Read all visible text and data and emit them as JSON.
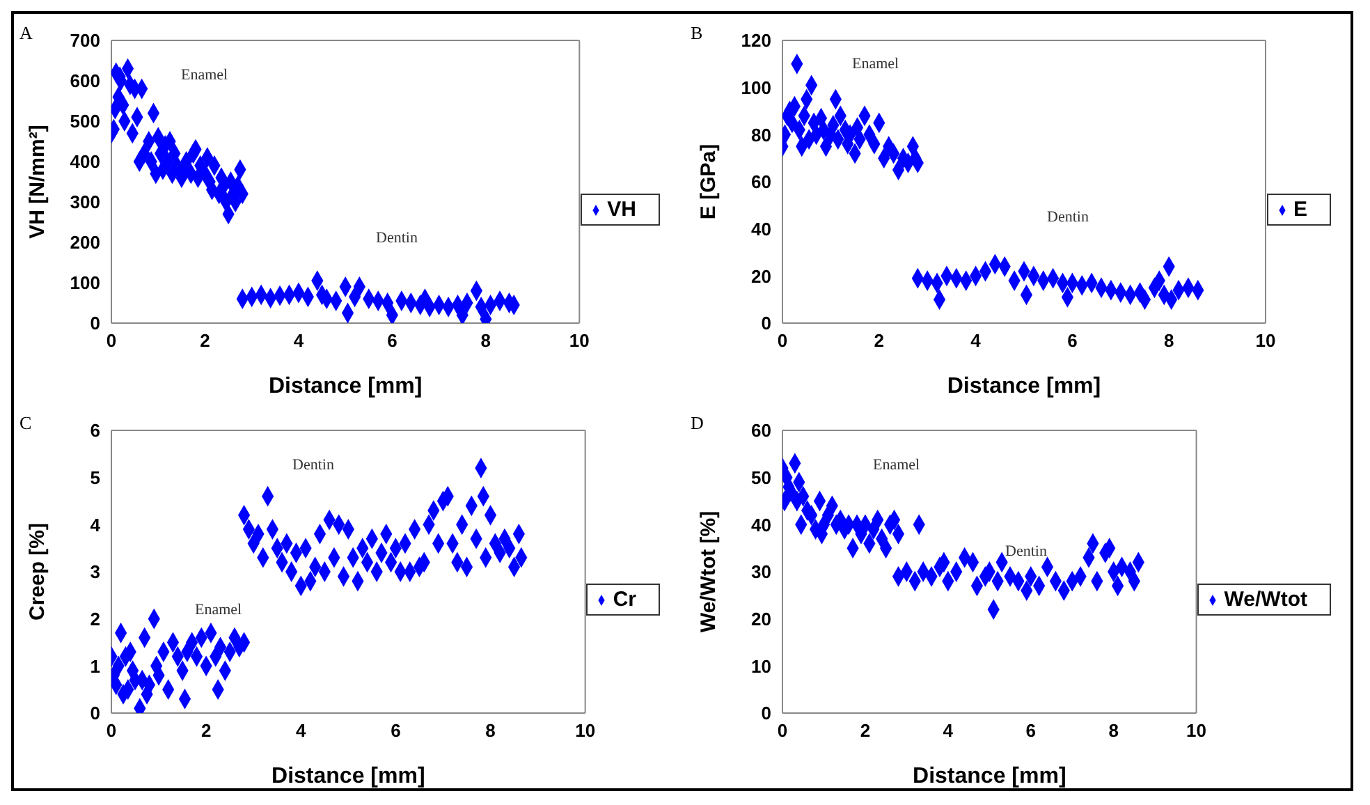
{
  "chart_data": [
    {
      "type": "scatter",
      "title": "A",
      "xlabel": "Distance [mm]",
      "ylabel": "VH [N/mm²]",
      "xlim": [
        0,
        10
      ],
      "xticks": [
        0,
        2,
        4,
        6,
        8,
        10
      ],
      "ylim": [
        0,
        700
      ],
      "yticks": [
        0,
        100,
        200,
        300,
        400,
        500,
        600,
        700
      ],
      "grid": false,
      "legend": "right",
      "marker": "diamond",
      "annotations": [
        "Enamel",
        "Dentin"
      ],
      "series": [
        {
          "name": "VH",
          "color": "#0000ff",
          "x": [
            0,
            0.05,
            0.08,
            0.1,
            0.15,
            0.18,
            0.2,
            0.25,
            0.28,
            0.35,
            0.4,
            0.45,
            0.5,
            0.55,
            0.6,
            0.65,
            0.7,
            0.8,
            0.85,
            0.9,
            0.95,
            1.0,
            1.05,
            1.1,
            1.15,
            1.2,
            1.25,
            1.3,
            1.35,
            1.4,
            1.5,
            1.55,
            1.6,
            1.7,
            1.75,
            1.8,
            1.85,
            1.9,
            2.0,
            2.05,
            2.1,
            2.15,
            2.2,
            2.3,
            2.35,
            2.4,
            2.45,
            2.5,
            2.55,
            2.6,
            2.65,
            2.7,
            2.75,
            2.8,
            2.8,
            3.0,
            3.2,
            3.4,
            3.6,
            3.8,
            4.0,
            4.2,
            4.4,
            4.5,
            4.6,
            4.8,
            5.0,
            5.05,
            5.2,
            5.3,
            5.5,
            5.7,
            5.9,
            6.0,
            6.2,
            6.4,
            6.6,
            6.7,
            6.8,
            7.0,
            7.2,
            7.4,
            7.5,
            7.6,
            7.8,
            7.9,
            8.0,
            8.1,
            8.3,
            8.5,
            8.6
          ],
          "values": [
            470,
            480,
            530,
            620,
            560,
            610,
            600,
            540,
            500,
            630,
            590,
            470,
            580,
            510,
            400,
            580,
            420,
            450,
            400,
            520,
            370,
            460,
            420,
            380,
            440,
            400,
            450,
            370,
            420,
            390,
            360,
            380,
            400,
            370,
            420,
            430,
            360,
            390,
            370,
            410,
            350,
            330,
            390,
            320,
            360,
            340,
            300,
            270,
            350,
            320,
            300,
            340,
            380,
            320,
            60,
            65,
            70,
            62,
            68,
            70,
            75,
            65,
            105,
            70,
            60,
            55,
            90,
            25,
            65,
            90,
            60,
            55,
            50,
            20,
            55,
            50,
            45,
            60,
            40,
            45,
            40,
            45,
            20,
            50,
            80,
            40,
            10,
            45,
            55,
            50,
            45
          ]
        }
      ]
    },
    {
      "type": "scatter",
      "title": "B",
      "xlabel": "Distance [mm]",
      "ylabel": "E [GPa]",
      "xlim": [
        0,
        10
      ],
      "xticks": [
        0,
        2,
        4,
        6,
        8,
        10
      ],
      "ylim": [
        0,
        120
      ],
      "yticks": [
        0,
        20,
        40,
        60,
        80,
        100,
        120
      ],
      "grid": false,
      "legend": "right",
      "marker": "diamond",
      "annotations": [
        "Enamel",
        "Dentin"
      ],
      "series": [
        {
          "name": "E",
          "color": "#0000ff",
          "x": [
            0,
            0.05,
            0.1,
            0.15,
            0.2,
            0.25,
            0.3,
            0.35,
            0.4,
            0.45,
            0.5,
            0.55,
            0.6,
            0.65,
            0.7,
            0.8,
            0.85,
            0.9,
            1.0,
            1.05,
            1.1,
            1.15,
            1.2,
            1.3,
            1.35,
            1.4,
            1.5,
            1.55,
            1.6,
            1.7,
            1.8,
            1.9,
            2.0,
            2.1,
            2.2,
            2.3,
            2.4,
            2.5,
            2.6,
            2.7,
            2.75,
            2.8,
            2.8,
            3.0,
            3.2,
            3.25,
            3.4,
            3.6,
            3.8,
            4.0,
            4.2,
            4.4,
            4.6,
            4.8,
            5.0,
            5.05,
            5.2,
            5.4,
            5.6,
            5.8,
            5.9,
            6.0,
            6.2,
            6.4,
            6.6,
            6.8,
            7.0,
            7.2,
            7.4,
            7.5,
            7.7,
            7.8,
            7.9,
            8.0,
            8.05,
            8.2,
            8.4,
            8.6
          ],
          "values": [
            75,
            80,
            88,
            90,
            85,
            92,
            110,
            82,
            75,
            88,
            95,
            78,
            101,
            85,
            80,
            87,
            82,
            75,
            80,
            84,
            95,
            78,
            88,
            82,
            76,
            80,
            72,
            83,
            78,
            88,
            80,
            76,
            85,
            70,
            75,
            72,
            65,
            70,
            68,
            75,
            70,
            68,
            19,
            18,
            17,
            10,
            20,
            19,
            18,
            20,
            22,
            25,
            24,
            18,
            22,
            12,
            20,
            18,
            19,
            17,
            11,
            17,
            16,
            17,
            15,
            14,
            13,
            12,
            13,
            10,
            15,
            18,
            12,
            24,
            10,
            14,
            15,
            14
          ]
        }
      ]
    },
    {
      "type": "scatter",
      "title": "C",
      "xlabel": "Distance [mm]",
      "ylabel": "Creep [%]",
      "xlim": [
        0,
        10
      ],
      "xticks": [
        0,
        2,
        4,
        6,
        8,
        10
      ],
      "ylim": [
        0,
        6
      ],
      "yticks": [
        0,
        1,
        2,
        3,
        4,
        5,
        6
      ],
      "grid": false,
      "legend": "right",
      "marker": "diamond",
      "annotations": [
        "Dentin",
        "Enamel"
      ],
      "series": [
        {
          "name": "Cr",
          "color": "#0000ff",
          "x": [
            0,
            0.05,
            0.1,
            0.15,
            0.2,
            0.25,
            0.3,
            0.35,
            0.4,
            0.45,
            0.5,
            0.6,
            0.65,
            0.7,
            0.75,
            0.8,
            0.9,
            0.95,
            1.0,
            1.1,
            1.2,
            1.3,
            1.4,
            1.5,
            1.55,
            1.6,
            1.7,
            1.8,
            1.9,
            2.0,
            2.1,
            2.2,
            2.25,
            2.3,
            2.4,
            2.5,
            2.6,
            2.7,
            2.8,
            2.8,
            2.9,
            3.0,
            3.1,
            3.2,
            3.3,
            3.4,
            3.5,
            3.6,
            3.7,
            3.8,
            3.9,
            4.0,
            4.1,
            4.2,
            4.3,
            4.4,
            4.5,
            4.6,
            4.7,
            4.8,
            4.9,
            5.0,
            5.1,
            5.2,
            5.3,
            5.4,
            5.5,
            5.6,
            5.7,
            5.8,
            5.9,
            6.0,
            6.1,
            6.2,
            6.3,
            6.4,
            6.5,
            6.6,
            6.7,
            6.8,
            6.9,
            7.0,
            7.1,
            7.2,
            7.3,
            7.4,
            7.5,
            7.6,
            7.7,
            7.8,
            7.85,
            7.9,
            8.0,
            8.1,
            8.2,
            8.3,
            8.4,
            8.5,
            8.6,
            8.65
          ],
          "values": [
            1.2,
            0.8,
            0.6,
            1.0,
            1.7,
            0.4,
            1.2,
            0.5,
            1.3,
            0.9,
            0.7,
            0.1,
            0.7,
            1.6,
            0.4,
            0.6,
            2.0,
            1.0,
            0.8,
            1.3,
            0.5,
            1.5,
            1.2,
            0.9,
            0.3,
            1.3,
            1.5,
            1.2,
            1.6,
            1.0,
            1.7,
            1.2,
            0.5,
            1.4,
            0.9,
            1.3,
            1.6,
            1.4,
            1.5,
            4.2,
            3.9,
            3.6,
            3.8,
            3.3,
            4.6,
            3.9,
            3.5,
            3.2,
            3.6,
            3.0,
            3.4,
            2.7,
            3.5,
            2.8,
            3.1,
            3.8,
            3.0,
            4.1,
            3.3,
            4.0,
            2.9,
            3.9,
            3.3,
            2.8,
            3.5,
            3.2,
            3.7,
            3.0,
            3.4,
            3.8,
            3.2,
            3.5,
            3.0,
            3.6,
            3.0,
            3.9,
            3.1,
            3.2,
            4.0,
            4.3,
            3.6,
            4.5,
            4.6,
            3.6,
            3.2,
            4.0,
            3.1,
            4.4,
            3.7,
            5.2,
            4.6,
            3.3,
            4.2,
            3.6,
            3.4,
            3.7,
            3.5,
            3.1,
            3.8,
            3.3
          ]
        }
      ]
    },
    {
      "type": "scatter",
      "title": "D",
      "xlabel": "Distance [mm]",
      "ylabel": "We/Wtot [%]",
      "xlim": [
        0,
        10
      ],
      "xticks": [
        0,
        2,
        4,
        6,
        8,
        10
      ],
      "ylim": [
        0,
        60
      ],
      "yticks": [
        0,
        10,
        20,
        30,
        40,
        50,
        60
      ],
      "grid": false,
      "legend": "right",
      "marker": "diamond",
      "annotations": [
        "Enamel",
        "Dentin"
      ],
      "series": [
        {
          "name": "We/Wtot",
          "color": "#0000ff",
          "x": [
            0,
            0.05,
            0.1,
            0.15,
            0.2,
            0.3,
            0.35,
            0.4,
            0.45,
            0.5,
            0.6,
            0.7,
            0.8,
            0.9,
            0.95,
            1.0,
            1.1,
            1.2,
            1.3,
            1.4,
            1.5,
            1.6,
            1.7,
            1.8,
            1.9,
            2.0,
            2.1,
            2.2,
            2.3,
            2.4,
            2.5,
            2.6,
            2.7,
            2.8,
            2.8,
            3.0,
            3.2,
            3.3,
            3.4,
            3.6,
            3.8,
            3.9,
            4.0,
            4.2,
            4.4,
            4.6,
            4.7,
            4.9,
            5.0,
            5.1,
            5.2,
            5.3,
            5.5,
            5.7,
            5.9,
            6.0,
            6.2,
            6.4,
            6.6,
            6.8,
            7.0,
            7.2,
            7.4,
            7.5,
            7.6,
            7.8,
            7.9,
            8.0,
            8.1,
            8.2,
            8.4,
            8.5,
            8.6
          ],
          "values": [
            52,
            45,
            50,
            48,
            47,
            53,
            45,
            49,
            40,
            46,
            43,
            42,
            39,
            45,
            38,
            40,
            42,
            44,
            40,
            41,
            39,
            40,
            35,
            40,
            38,
            40,
            36,
            39,
            41,
            37,
            35,
            40,
            41,
            38,
            29,
            30,
            28,
            40,
            30,
            29,
            31,
            32,
            28,
            30,
            33,
            32,
            27,
            29,
            30,
            22,
            28,
            32,
            29,
            28,
            26,
            29,
            27,
            31,
            28,
            26,
            28,
            29,
            33,
            36,
            28,
            34,
            35,
            30,
            27,
            31,
            30,
            28,
            32
          ]
        }
      ]
    }
  ]
}
